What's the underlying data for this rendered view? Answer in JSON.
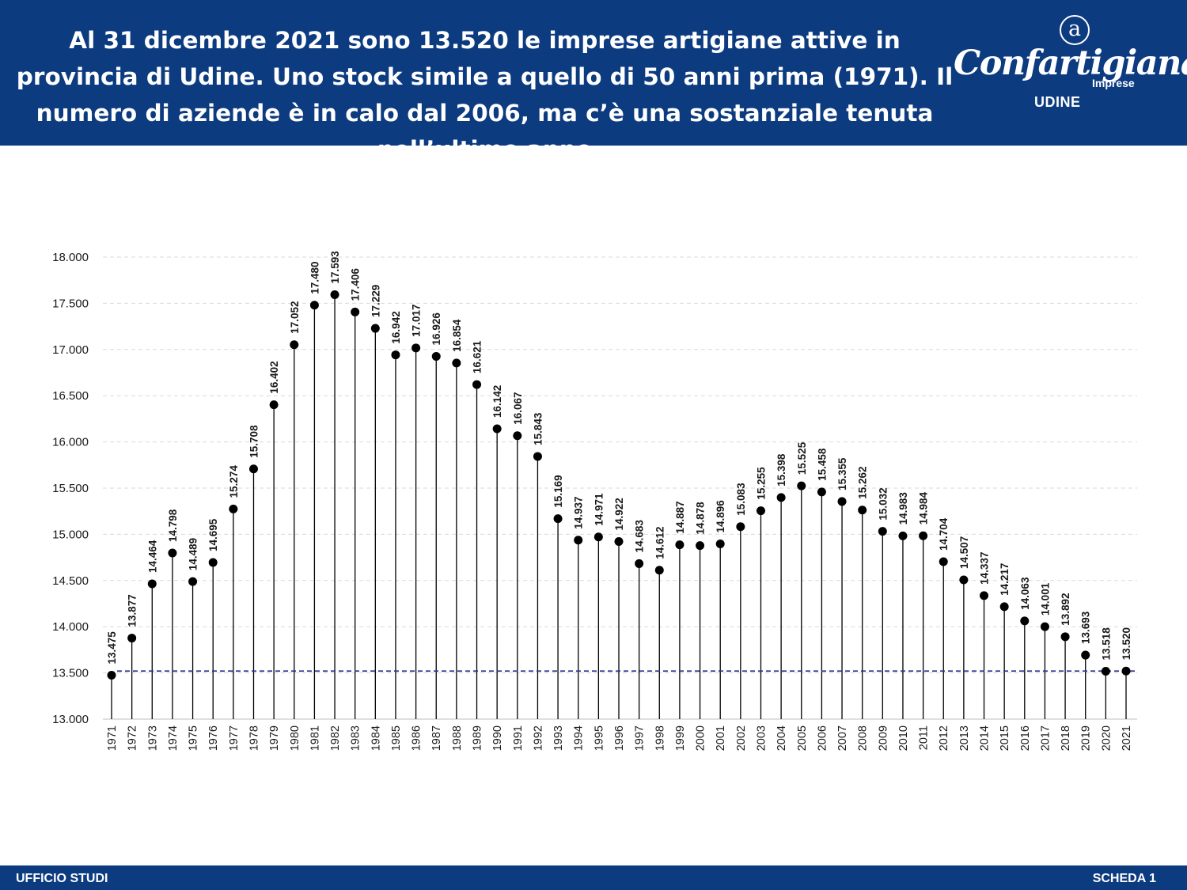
{
  "header": {
    "title": "Al 31 dicembre 2021 sono 13.520 le imprese artigiane attive in provincia di Udine. Uno stock simile a quello di 50 anni prima (1971).  Il numero di aziende è in calo dal 2006, ma c’è una sostanziale tenuta nell’ultimo anno",
    "brand_color": "#0c3b80",
    "logo": {
      "symbol": "a",
      "name": "Confartigianato",
      "sub": "Imprese",
      "city": "UDINE"
    }
  },
  "footer": {
    "left": "UFFICIO STUDI",
    "right": "SCHEDA 1"
  },
  "chart_data": {
    "type": "lollipop",
    "title": "",
    "xlabel": "",
    "ylabel": "",
    "ylim": [
      13000,
      18000
    ],
    "y_ticks": [
      13000,
      13500,
      14000,
      14500,
      15000,
      15500,
      16000,
      16500,
      17000,
      17500,
      18000
    ],
    "y_tick_labels": [
      "13.000",
      "13.500",
      "14.000",
      "14.500",
      "15.000",
      "15.500",
      "16.000",
      "16.500",
      "17.000",
      "17.500",
      "18.000"
    ],
    "grid": "horizontal dashed",
    "reference_line": {
      "value": 13520,
      "style": "dashed",
      "color": "#2e3192"
    },
    "marker_color": "#000000",
    "categories": [
      "1971",
      "1972",
      "1973",
      "1974",
      "1975",
      "1976",
      "1977",
      "1978",
      "1979",
      "1980",
      "1981",
      "1982",
      "1983",
      "1984",
      "1985",
      "1986",
      "1987",
      "1988",
      "1989",
      "1990",
      "1991",
      "1992",
      "1993",
      "1994",
      "1995",
      "1996",
      "1997",
      "1998",
      "1999",
      "2000",
      "2001",
      "2002",
      "2003",
      "2004",
      "2005",
      "2006",
      "2007",
      "2008",
      "2009",
      "2010",
      "2011",
      "2012",
      "2013",
      "2014",
      "2015",
      "2016",
      "2017",
      "2018",
      "2019",
      "2020",
      "2021"
    ],
    "values": [
      13475,
      13877,
      14464,
      14798,
      14489,
      14695,
      15274,
      15708,
      16402,
      17052,
      17480,
      17593,
      17406,
      17229,
      16942,
      17017,
      16926,
      16854,
      16621,
      16142,
      16067,
      15843,
      15169,
      14937,
      14971,
      14922,
      14683,
      14612,
      14887,
      14878,
      14896,
      15083,
      15255,
      15398,
      15525,
      15458,
      15355,
      15262,
      15032,
      14983,
      14984,
      14704,
      14507,
      14337,
      14217,
      14063,
      14001,
      13892,
      13693,
      13518,
      13520
    ],
    "labels": [
      "13.475",
      "13.877",
      "14.464",
      "14.798",
      "14.489",
      "14.695",
      "15.274",
      "15.708",
      "16.402",
      "17.052",
      "17.480",
      "17.593",
      "17.406",
      "17.229",
      "16.942",
      "17.017",
      "16.926",
      "16.854",
      "16.621",
      "16.142",
      "16.067",
      "15.843",
      "15.169",
      "14.937",
      "14.971",
      "14.922",
      "14.683",
      "14.612",
      "14.887",
      "14.878",
      "14.896",
      "15.083",
      "15.255",
      "15.398",
      "15.525",
      "15.458",
      "15.355",
      "15.262",
      "15.032",
      "14.983",
      "14.984",
      "14.704",
      "14.507",
      "14.337",
      "14.217",
      "14.063",
      "14.001",
      "13.892",
      "13.693",
      "13.518",
      "13.520"
    ]
  }
}
